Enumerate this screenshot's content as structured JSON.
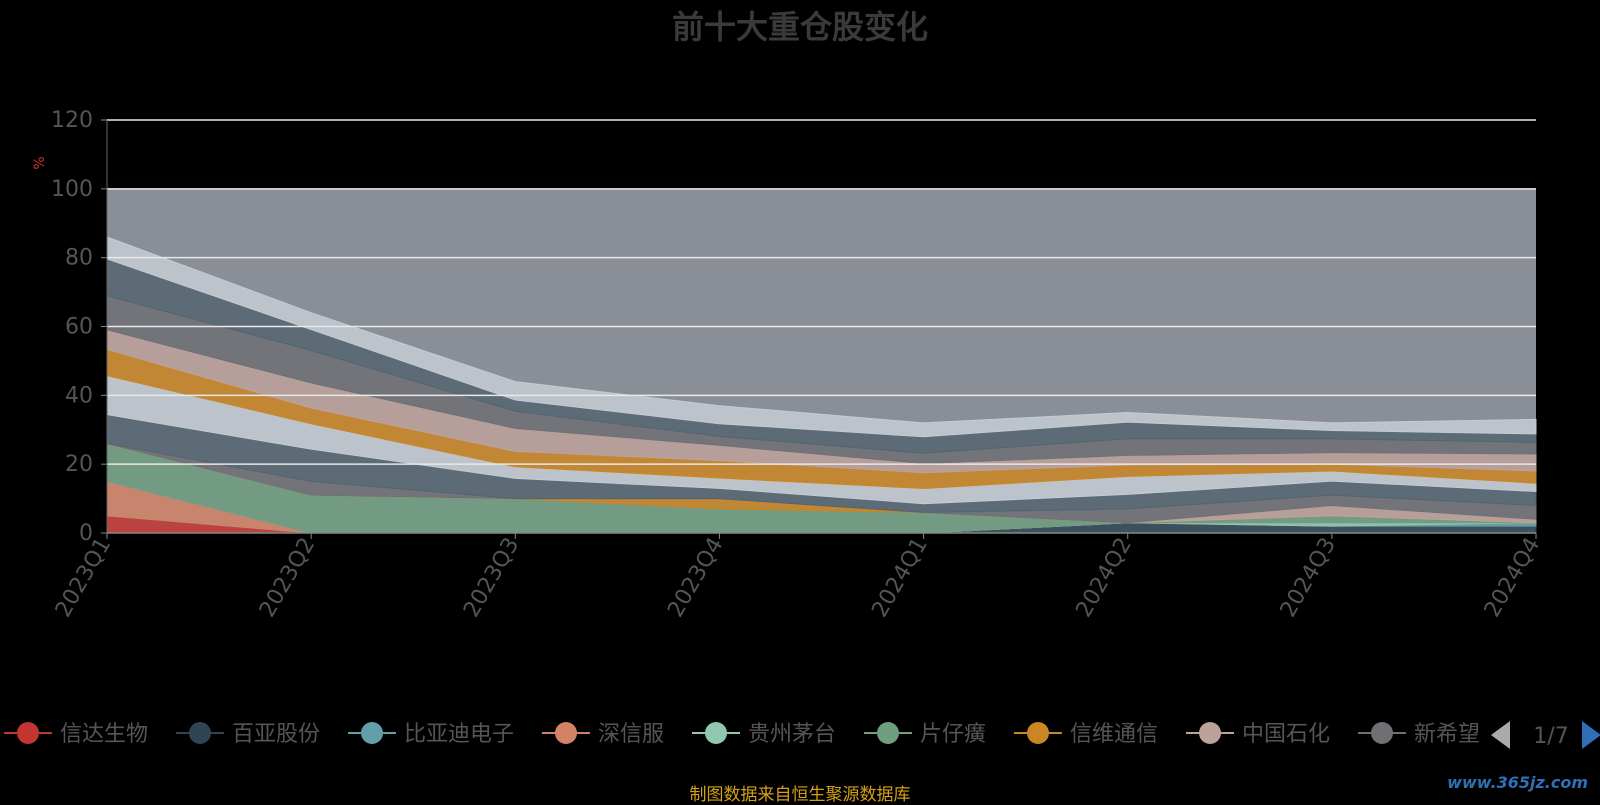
{
  "chart_data": {
    "type": "area",
    "title": "前十大重仓股变化",
    "ylabel": "%",
    "ylim": [
      0,
      120
    ],
    "y_ticks": [
      0,
      20,
      40,
      60,
      80,
      100,
      120
    ],
    "grid": true,
    "stacked": true,
    "categories": [
      "2023Q1",
      "2023Q2",
      "2023Q3",
      "2023Q4",
      "2024Q1",
      "2024Q2",
      "2024Q3",
      "2024Q4"
    ],
    "series": [
      {
        "name": "信达生物",
        "color": "#c23531",
        "values": [
          5,
          0,
          0,
          0,
          0,
          0,
          0,
          0
        ]
      },
      {
        "name": "百亚股份",
        "color": "#2f4554",
        "values": [
          0,
          0,
          0,
          0,
          0,
          3,
          2,
          2
        ]
      },
      {
        "name": "比亚迪电子",
        "color": "#61a0a8",
        "values": [
          0,
          0,
          0,
          0,
          0,
          0,
          0,
          1
        ]
      },
      {
        "name": "深信服",
        "color": "#d48265",
        "values": [
          10,
          0,
          0,
          0,
          0,
          0,
          0,
          0
        ]
      },
      {
        "name": "贵州茅台",
        "color": "#91c7ae",
        "values": [
          0,
          0,
          0,
          0,
          0,
          0,
          1,
          0
        ]
      },
      {
        "name": "片仔癀",
        "color": "#6e9e80",
        "values": [
          11,
          11,
          10,
          7,
          6,
          0,
          2,
          0
        ]
      },
      {
        "name": "信维通信",
        "color": "#ca8622",
        "values": [
          0,
          0,
          0,
          3,
          0,
          0,
          0,
          0
        ]
      },
      {
        "name": "中国石化",
        "color": "#bda29a",
        "values": [
          0,
          0,
          0,
          0,
          0,
          0,
          3,
          1
        ]
      },
      {
        "name": "新希望",
        "color": "#6e7074",
        "values": [
          0,
          4,
          0,
          0,
          0,
          4,
          3,
          4
        ]
      }
    ],
    "extra_series_colors": [
      "#546570",
      "#c4ccd3",
      "#ca8622",
      "#bda29a",
      "#6e7074",
      "#546570",
      "#c4ccd3"
    ],
    "total_top": [
      86,
      64,
      44,
      37,
      32,
      35,
      32,
      33
    ]
  },
  "legend": {
    "items": [
      "信达生物",
      "百亚股份",
      "比亚迪电子",
      "深信服",
      "贵州茅台",
      "片仔癀",
      "信维通信",
      "中国石化",
      "新希望"
    ],
    "page": "1/7"
  },
  "source_note": "制图数据来自恒生聚源数据库",
  "watermark": "www.365jz.com"
}
